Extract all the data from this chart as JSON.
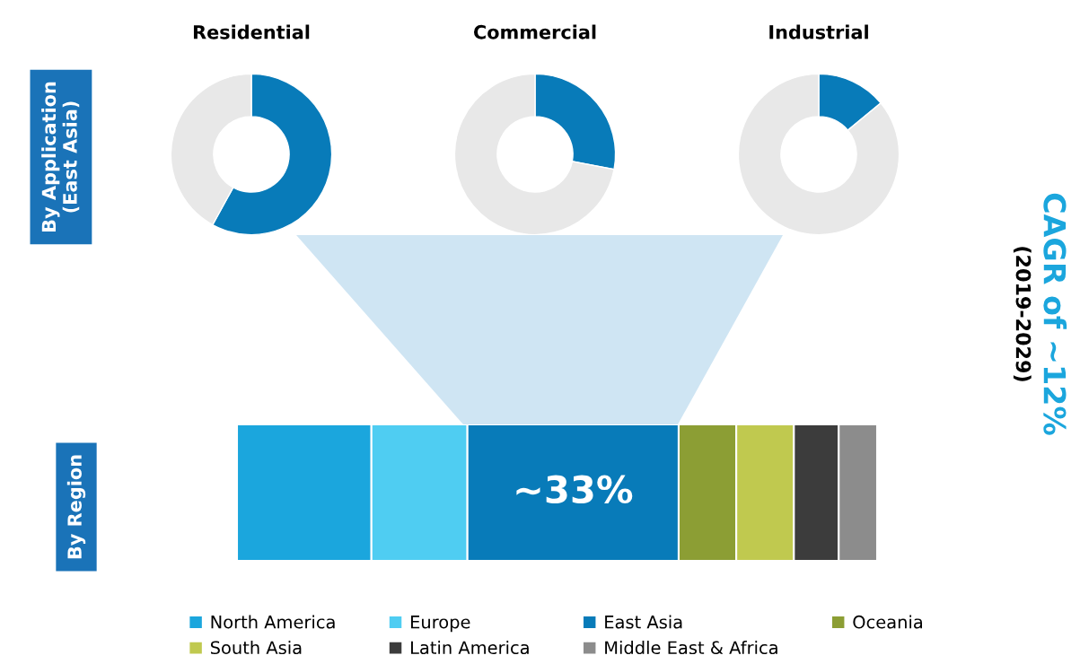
{
  "chart_data": [
    {
      "type": "donut",
      "title": "Residential",
      "categories": [
        null,
        null
      ],
      "values": [
        58,
        42
      ],
      "colors": [
        "#087bb9",
        "#e8e8e8"
      ],
      "annotations": [
        "By Application\n(East Asia)"
      ]
    },
    {
      "type": "donut",
      "title": "Commercial",
      "categories": [
        null,
        null
      ],
      "values": [
        28,
        72
      ],
      "colors": [
        "#087bb9",
        "#e8e8e8"
      ]
    },
    {
      "type": "donut",
      "title": "Industrial",
      "categories": [
        null,
        null
      ],
      "values": [
        14,
        86
      ],
      "colors": [
        "#087bb9",
        "#e8e8e8"
      ]
    },
    {
      "type": "bar",
      "orientation": "horizontal",
      "stacked": true,
      "categories": [
        null
      ],
      "legend": "bottom",
      "series": [
        {
          "name": "North America",
          "color": "#1ba6dd",
          "values": [
            21
          ]
        },
        {
          "name": "Europe",
          "color": "#4fcdf2",
          "values": [
            15
          ]
        },
        {
          "name": "East Asia",
          "color": "#087bb9",
          "values": [
            33
          ],
          "value_labels": [
            "~33%"
          ]
        },
        {
          "name": "Oceania",
          "color": "#8c9e34",
          "values": [
            9
          ]
        },
        {
          "name": "South Asia",
          "color": "#c0c94f",
          "values": [
            9
          ]
        },
        {
          "name": "Latin America",
          "color": "#3c3c3c",
          "values": [
            7
          ]
        },
        {
          "name": "Middle East & Africa",
          "color": "#8c8c8c",
          "values": [
            6
          ]
        }
      ],
      "annotations": [
        "By Region",
        "CAGR of ~12%",
        "(2019-2029)"
      ]
    }
  ]
}
